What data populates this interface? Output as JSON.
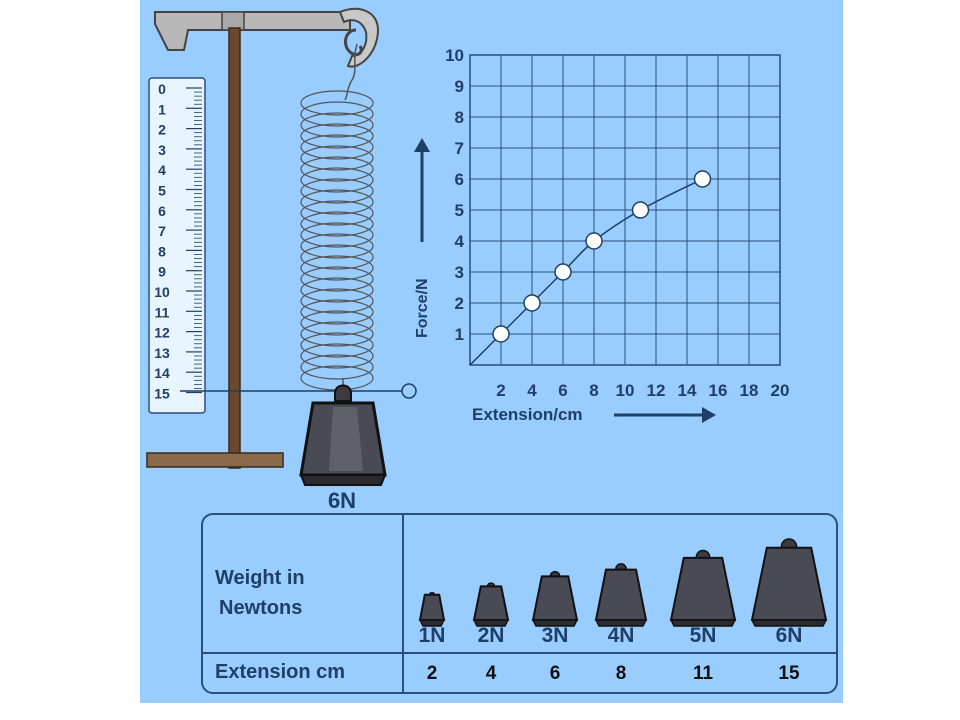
{
  "ruler": {
    "ticks": [
      "0",
      "1",
      "2",
      "3",
      "4",
      "5",
      "6",
      "7",
      "8",
      "9",
      "10",
      "11",
      "12",
      "13",
      "14",
      "15"
    ]
  },
  "hanging_weight_label": "6N",
  "chart_data": {
    "type": "scatter",
    "x": [
      2,
      4,
      6,
      8,
      11,
      15
    ],
    "y": [
      1,
      2,
      3,
      4,
      5,
      6
    ],
    "xlabel": "Extension/cm",
    "ylabel": "Force/N",
    "xlim": [
      0,
      20
    ],
    "ylim": [
      0,
      10
    ],
    "x_ticks": [
      "2",
      "4",
      "6",
      "8",
      "10",
      "12",
      "14",
      "16",
      "18",
      "20"
    ],
    "y_ticks": [
      "1",
      "2",
      "3",
      "4",
      "5",
      "6",
      "7",
      "8",
      "9",
      "10"
    ],
    "grid": true,
    "line_through_points": true
  },
  "table": {
    "weight_header_line1": "Weight in",
    "weight_header_line2": "Newtons",
    "extension_header": "Extension cm",
    "weights": [
      "1N",
      "2N",
      "3N",
      "4N",
      "5N",
      "6N"
    ],
    "extensions": [
      "2",
      "4",
      "6",
      "8",
      "11",
      "15"
    ]
  },
  "colors": {
    "panel": "#99ccff",
    "stand": "#6b4a2b",
    "grid": "#2a4f7a",
    "text": "#1f3f66"
  }
}
